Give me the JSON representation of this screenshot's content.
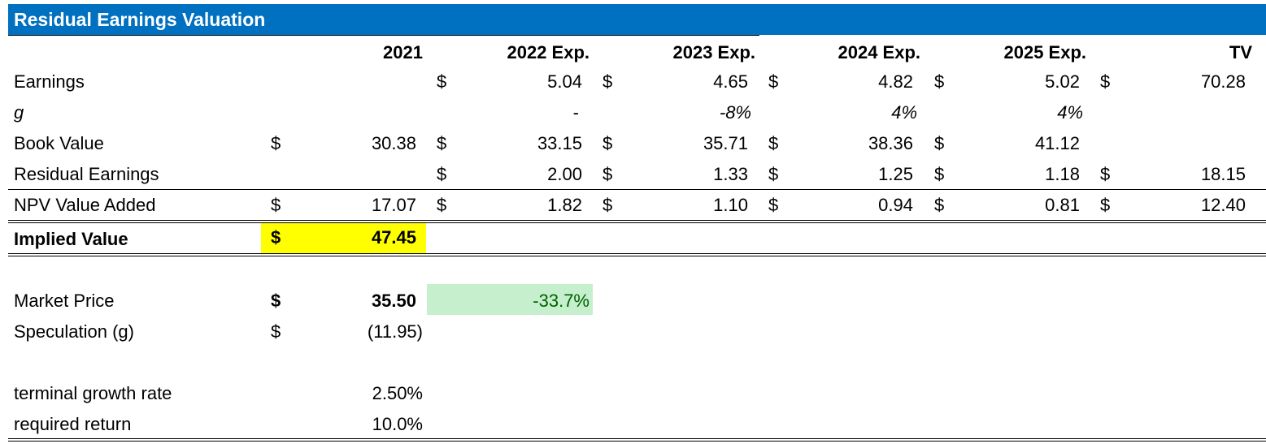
{
  "title": "Residual Earnings Valuation",
  "headers": [
    "2021",
    "2022 Exp.",
    "2023 Exp.",
    "2024 Exp.",
    "2025 Exp.",
    "TV"
  ],
  "currency": "$",
  "rows": {
    "earnings": {
      "label": "Earnings",
      "values": [
        "",
        "5.04",
        "4.65",
        "4.82",
        "5.02",
        "70.28"
      ]
    },
    "g": {
      "label": "g",
      "values": [
        "",
        "-",
        "-8%",
        "4%",
        "4%",
        ""
      ]
    },
    "book_value": {
      "label": "Book Value",
      "values": [
        "30.38",
        "33.15",
        "35.71",
        "38.36",
        "41.12",
        ""
      ]
    },
    "residual_earnings": {
      "label": "Residual Earnings",
      "values": [
        "",
        "2.00",
        "1.33",
        "1.25",
        "1.18",
        "18.15"
      ]
    },
    "npv_value_added": {
      "label": "NPV Value Added",
      "values": [
        "17.07",
        "1.82",
        "1.10",
        "0.94",
        "0.81",
        "12.40"
      ]
    }
  },
  "implied_value": {
    "label": "Implied Value",
    "value": "47.45",
    "highlight": "#ffff00"
  },
  "market_price": {
    "label": "Market Price",
    "value": "35.50",
    "pct": "-33.7%",
    "pct_color": "#006100",
    "pct_bg": "#c6efce"
  },
  "speculation": {
    "label": "Speculation (g)",
    "value": "(11.95)"
  },
  "terminal_growth": {
    "label": "terminal growth rate",
    "value": "2.50%"
  },
  "required_return": {
    "label": "required return",
    "value": "10.0%"
  },
  "colors": {
    "title_bg": "#0070c0",
    "title_fg": "#ffffff"
  }
}
